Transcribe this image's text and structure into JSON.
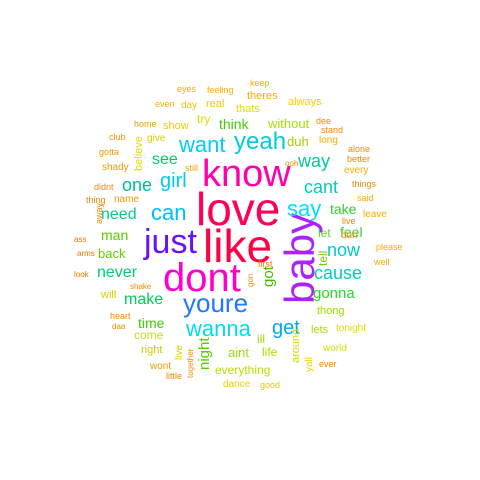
{
  "words": [
    {
      "text": "love",
      "color": "#ff0055"
    },
    {
      "text": "like",
      "color": "#ff0044"
    },
    {
      "text": "know",
      "color": "#ff00aa"
    },
    {
      "text": "dont",
      "color": "#ff00cc"
    },
    {
      "text": "baby",
      "color": "#aa22ff"
    },
    {
      "text": "just",
      "color": "#6611ff"
    },
    {
      "text": "youre",
      "color": "#2277ff"
    },
    {
      "text": "wanna",
      "color": "#00ddee"
    },
    {
      "text": "say",
      "color": "#00ddff"
    },
    {
      "text": "yeah",
      "color": "#00ccdd"
    },
    {
      "text": "want",
      "color": "#00ccff"
    },
    {
      "text": "can",
      "color": "#00bbff"
    },
    {
      "text": "get",
      "color": "#00aaee"
    },
    {
      "text": "cause",
      "color": "#00ccbb"
    },
    {
      "text": "now",
      "color": "#00cccc"
    },
    {
      "text": "cant",
      "color": "#00ccbb"
    },
    {
      "text": "way",
      "color": "#00cc99"
    },
    {
      "text": "girl",
      "color": "#00ccee"
    },
    {
      "text": "one",
      "color": "#00bb99"
    },
    {
      "text": "see",
      "color": "#00cc66"
    },
    {
      "text": "need",
      "color": "#00cc88"
    },
    {
      "text": "never",
      "color": "#00cc77"
    },
    {
      "text": "make",
      "color": "#00cc55"
    },
    {
      "text": "gonna",
      "color": "#22dd22"
    },
    {
      "text": "think",
      "color": "#44cc00"
    },
    {
      "text": "time",
      "color": "#44cc00"
    },
    {
      "text": "take",
      "color": "#33cc33"
    },
    {
      "text": "feel",
      "color": "#33cc33"
    },
    {
      "text": "man",
      "color": "#55cc00"
    },
    {
      "text": "back",
      "color": "#66cc00"
    },
    {
      "text": "got",
      "color": "#44bb00"
    },
    {
      "text": "night",
      "color": "#55cc00"
    },
    {
      "text": "let",
      "color": "#66cc22"
    },
    {
      "text": "tell",
      "color": "#77cc00"
    },
    {
      "text": "without",
      "color": "#aadd00"
    },
    {
      "text": "duh",
      "color": "#aacc00"
    },
    {
      "text": "come",
      "color": "#bbdd22"
    },
    {
      "text": "aint",
      "color": "#99dd00"
    },
    {
      "text": "life",
      "color": "#aadd00"
    },
    {
      "text": "ill",
      "color": "#99dd00"
    },
    {
      "text": "lets",
      "color": "#aadd00"
    },
    {
      "text": "thong",
      "color": "#99dd00"
    },
    {
      "text": "everything",
      "color": "#bbdd00"
    },
    {
      "text": "around",
      "color": "#ccdd00"
    },
    {
      "text": "right",
      "color": "#cccc00"
    },
    {
      "text": "tonight",
      "color": "#dddd00"
    },
    {
      "text": "world",
      "color": "#dddd00"
    },
    {
      "text": "dance",
      "color": "#eecc00"
    },
    {
      "text": "good",
      "color": "#ddcc00"
    },
    {
      "text": "try",
      "color": "#dddd00"
    },
    {
      "text": "thats",
      "color": "#dddd00"
    },
    {
      "text": "real",
      "color": "#eecc00"
    },
    {
      "text": "day",
      "color": "#ddcc00"
    },
    {
      "text": "show",
      "color": "#eecc00"
    },
    {
      "text": "give",
      "color": "#ddcc00"
    },
    {
      "text": "believe",
      "color": "#dddd00"
    },
    {
      "text": "still",
      "color": "#ddaa00"
    },
    {
      "text": "will",
      "color": "#ddcc00"
    },
    {
      "text": "long",
      "color": "#ffaa00"
    },
    {
      "text": "theres",
      "color": "#ffaa00"
    },
    {
      "text": "always",
      "color": "#ffcc00"
    },
    {
      "text": "keep",
      "color": "#ffaa00"
    },
    {
      "text": "feeling",
      "color": "#ffaa00"
    },
    {
      "text": "eyes",
      "color": "#ffaa00"
    },
    {
      "text": "even",
      "color": "#ffaa00"
    },
    {
      "text": "home",
      "color": "#ee9900"
    },
    {
      "text": "club",
      "color": "#ee9900"
    },
    {
      "text": "gotta",
      "color": "#ee9900"
    },
    {
      "text": "shady",
      "color": "#ee9900"
    },
    {
      "text": "didnt",
      "color": "#ee8800"
    },
    {
      "text": "thing",
      "color": "#ee8800"
    },
    {
      "text": "name",
      "color": "#ee9900"
    },
    {
      "text": "away",
      "color": "#ee8800"
    },
    {
      "text": "ass",
      "color": "#ee7700"
    },
    {
      "text": "arms",
      "color": "#ee7700"
    },
    {
      "text": "look",
      "color": "#ee7700"
    },
    {
      "text": "shake",
      "color": "#ee8800"
    },
    {
      "text": "heart",
      "color": "#ee8800"
    },
    {
      "text": "daa",
      "color": "#ee8800"
    },
    {
      "text": "little",
      "color": "#ee8800"
    },
    {
      "text": "together",
      "color": "#ee8800"
    },
    {
      "text": "wont",
      "color": "#ee9900"
    },
    {
      "text": "live",
      "color": "#ddcc00"
    },
    {
      "text": "first",
      "color": "#ff7700"
    },
    {
      "text": "gon",
      "color": "#ee8800"
    },
    {
      "text": "ooh",
      "color": "#ee8800"
    },
    {
      "text": "dee",
      "color": "#ee8800"
    },
    {
      "text": "stand",
      "color": "#ee8800"
    },
    {
      "text": "alone",
      "color": "#ee8800"
    },
    {
      "text": "better",
      "color": "#ee8800"
    },
    {
      "text": "every",
      "color": "#ffaa00"
    },
    {
      "text": "things",
      "color": "#ee8800"
    },
    {
      "text": "said",
      "color": "#ffaa00"
    },
    {
      "text": "leave",
      "color": "#ffaa00"
    },
    {
      "text": "live",
      "color": "#ee8800"
    },
    {
      "text": "dun",
      "color": "#ee8800"
    },
    {
      "text": "please",
      "color": "#ffaa00"
    },
    {
      "text": "well",
      "color": "#ffaa00"
    },
    {
      "text": "yall",
      "color": "#ffcc00"
    },
    {
      "text": "ever",
      "color": "#ee8800"
    }
  ]
}
